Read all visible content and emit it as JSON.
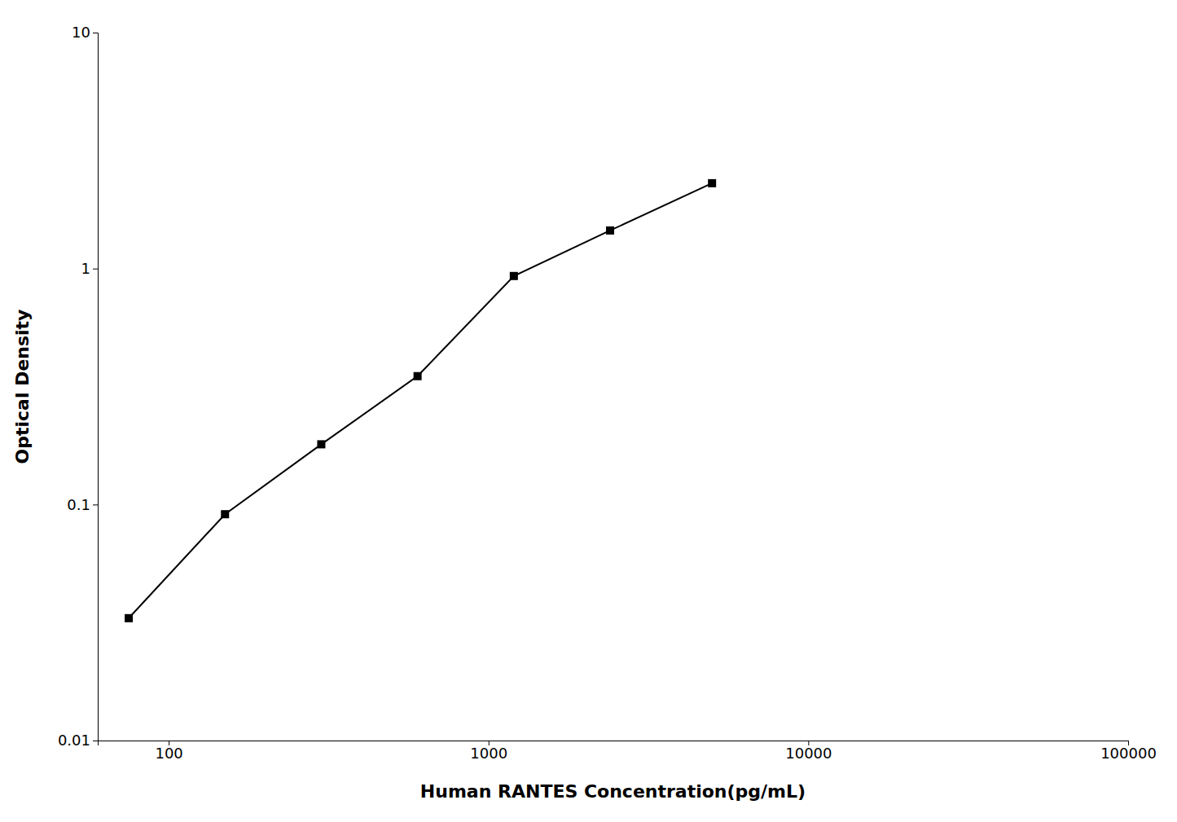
{
  "chart_data": {
    "type": "line",
    "x": [
      75,
      150,
      300,
      600,
      1200,
      2400,
      5000
    ],
    "values": [
      0.033,
      0.091,
      0.18,
      0.35,
      0.93,
      1.45,
      2.3
    ],
    "xlabel": "Human RANTES Concentration(pg/mL)",
    "ylabel": "Optical Density",
    "color": "#000000",
    "marker": "square",
    "log": true,
    "grid": false,
    "xlim": [
      60,
      100000
    ],
    "ylim": [
      0.01,
      10
    ],
    "xticks": [
      100,
      1000,
      10000,
      100000
    ],
    "yticks": [
      0.01,
      0.1,
      1,
      10
    ]
  }
}
